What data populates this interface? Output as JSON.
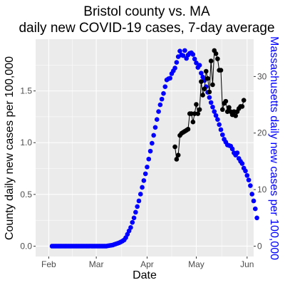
{
  "chart_data": {
    "type": "scatter",
    "title_lines": [
      "Bristol county vs. MA",
      "daily new COVID-19 cases, 7-day average"
    ],
    "xlabel": "Date",
    "ylabel_left": "County daily new cases  per 100,000",
    "ylabel_right": "Massachusetts daily new cases per 100,000",
    "x_ticks": [
      {
        "label": "Feb",
        "date": "2020-02-01"
      },
      {
        "label": "Mar",
        "date": "2020-03-01"
      },
      {
        "label": "Apr",
        "date": "2020-04-01"
      },
      {
        "label": "May",
        "date": "2020-05-01"
      },
      {
        "label": "Jun",
        "date": "2020-06-01"
      }
    ],
    "x_range": [
      "2020-01-24",
      "2020-06-05"
    ],
    "left_axis": {
      "ticks": [
        "0.0",
        "0.5",
        "1.0",
        "1.5"
      ],
      "range": [
        -0.1,
        2.0
      ]
    },
    "right_axis": {
      "ticks": [
        "0",
        "10",
        "20",
        "30"
      ],
      "range": [
        -1.83,
        36.6
      ]
    },
    "colors": {
      "panel": "#ebebeb",
      "grid": "#ffffff",
      "county": "#000000",
      "state": "#0000ff",
      "tick_text": "#4d4d4d"
    },
    "series": [
      {
        "axis": "right",
        "color": "#0000ff",
        "start_date": "2020-02-03",
        "values": [
          0,
          0,
          0,
          0,
          0,
          0,
          0,
          0,
          0,
          0,
          0,
          0,
          0,
          0,
          0,
          0,
          0,
          0,
          0,
          0,
          0,
          0,
          0,
          0,
          0,
          0,
          0,
          0,
          0,
          0,
          0,
          0,
          0,
          0,
          0.05,
          0.1,
          0.15,
          0.2,
          0.3,
          0.4,
          0.5,
          0.6,
          0.75,
          0.9,
          1.1,
          1.5,
          2.1,
          2.7,
          3.3,
          4.2,
          5.0,
          6.0,
          7.0,
          8.0,
          9.2,
          10.4,
          11.6,
          12.8,
          14.0,
          15.4,
          16.8,
          18.2,
          19.6,
          21.0,
          22.4,
          23.8,
          25.0,
          26.0,
          27.0,
          28.2,
          29.4,
          29.6,
          29.7,
          30.5,
          31.0,
          31.5,
          32.5,
          33.5,
          34.5,
          33.8,
          33.7,
          34.6,
          33.2,
          33.8,
          34.1,
          34.2,
          33.9,
          33.1,
          32.4,
          31.6,
          32.0,
          30.6,
          29.9,
          29.3,
          28.2,
          27.2,
          26.3,
          25.4,
          24.6,
          23.8,
          23.1,
          22.4,
          21.5,
          20.6,
          19.7,
          18.9,
          18.4,
          17.9,
          17.8,
          17.7,
          17.2,
          16.5,
          16.1,
          16.5,
          15.5,
          15.0,
          14.6,
          13.8,
          13.3,
          12.5,
          11.7,
          10.7,
          9.2,
          8.0,
          6.6,
          5.0
        ]
      },
      {
        "axis": "left",
        "color": "#000000",
        "start_date": "2020-04-18",
        "values": [
          0.96,
          0.84,
          0.88,
          1.07,
          1.09,
          1.1,
          1.11,
          1.12,
          1.13,
          1.28,
          1.28,
          1.2,
          1.28,
          1.37,
          1.28,
          1.32,
          1.59,
          1.46,
          1.52,
          1.69,
          1.62,
          1.49,
          1.79,
          1.56,
          1.89,
          1.86,
          1.81,
          1.7,
          1.7,
          1.32,
          1.38,
          1.4,
          1.3,
          1.34,
          1.3,
          1.27,
          1.3,
          1.26,
          1.3,
          1.33,
          1.35,
          1.35,
          1.41
        ]
      }
    ]
  }
}
